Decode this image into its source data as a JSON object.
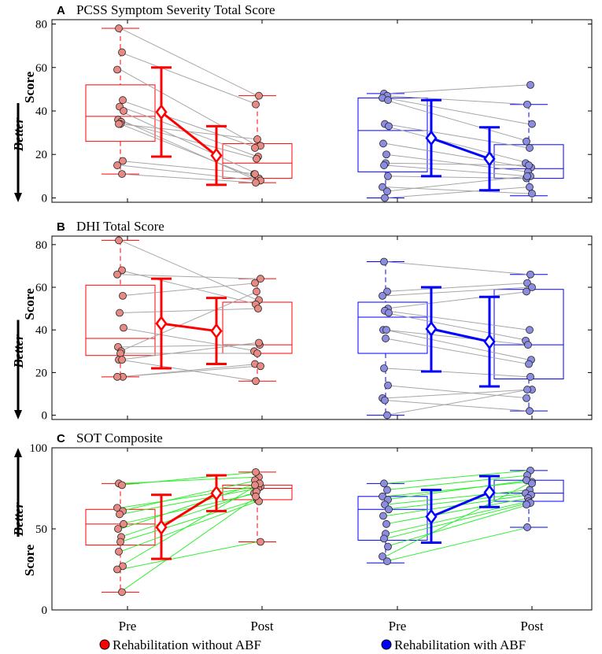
{
  "colors": {
    "without": "#ff0000",
    "with": "#0000ff",
    "pointFillWithout": "#e88a84",
    "pointFillWith": "#8c8ce0",
    "lineWorse": "#a6a6a6",
    "lineBetterSOT": "#33ee33"
  },
  "legend": [
    {
      "label": "Rehabilitation without ABF",
      "color": "#ff0000"
    },
    {
      "label": "Rehabilitation with ABF",
      "color": "#0000ff"
    }
  ],
  "chart_data": [
    {
      "letter": "A",
      "title": "PCSS Symptom Severity Total Score",
      "type": "boxplot+paired-scatter",
      "ylim": [
        -2,
        82
      ],
      "yticks": [
        "0",
        "20",
        "40",
        "60",
        "80"
      ],
      "ytick_values": [
        0,
        20,
        40,
        60,
        80
      ],
      "ylabel": "Score",
      "better_label": "Better",
      "better_direction": "down",
      "categories": [
        "Pre",
        "Post",
        "Pre",
        "Post"
      ],
      "groups": [
        {
          "name": "Rehabilitation without ABF",
          "pre_box": {
            "q1": 26,
            "median": 37.5,
            "q3": 52,
            "whisker_low": 11,
            "whisker_high": 78
          },
          "post_box": {
            "q1": 9,
            "median": 16,
            "q3": 25,
            "whisker_low": 7,
            "whisker_high": 47
          },
          "mean_pre": 39.5,
          "sd_pre": [
            19,
            60
          ],
          "mean_post": 19.5,
          "sd_post": [
            6,
            33
          ],
          "pairs": [
            [
              78,
              47
            ],
            [
              67,
              43
            ],
            [
              59,
              24
            ],
            [
              45,
              23
            ],
            [
              42,
              19
            ],
            [
              40,
              11
            ],
            [
              36,
              8
            ],
            [
              35,
              18
            ],
            [
              34,
              27
            ],
            [
              34,
              9
            ],
            [
              17,
              11
            ],
            [
              15,
              8
            ],
            [
              11,
              7
            ]
          ]
        },
        {
          "name": "Rehabilitation with ABF",
          "pre_box": {
            "q1": 12,
            "median": 31,
            "q3": 46,
            "whisker_low": 0,
            "whisker_high": 48
          },
          "post_box": {
            "q1": 9,
            "median": 13.5,
            "q3": 24.5,
            "whisker_low": 1,
            "whisker_high": 43
          },
          "mean_pre": 27.5,
          "sd_pre": [
            10,
            45
          ],
          "mean_post": 18,
          "sd_post": [
            3.5,
            32.5
          ],
          "pairs": [
            [
              48,
              52
            ],
            [
              47,
              43
            ],
            [
              46,
              34
            ],
            [
              45,
              26
            ],
            [
              34,
              23
            ],
            [
              33,
              16
            ],
            [
              25,
              14
            ],
            [
              20,
              12
            ],
            [
              16,
              15
            ],
            [
              15,
              10
            ],
            [
              10,
              9
            ],
            [
              5,
              2
            ],
            [
              3,
              10
            ],
            [
              0,
              5
            ]
          ]
        }
      ]
    },
    {
      "letter": "B",
      "title": "DHI Total Score",
      "type": "boxplot+paired-scatter",
      "ylim": [
        -2,
        84
      ],
      "yticks": [
        "0",
        "20",
        "40",
        "60",
        "80"
      ],
      "ytick_values": [
        0,
        20,
        40,
        60,
        80
      ],
      "ylabel": "Score",
      "better_label": "Better",
      "better_direction": "down",
      "categories": [
        "Pre",
        "Post",
        "Pre",
        "Post"
      ],
      "groups": [
        {
          "name": "Rehabilitation without ABF",
          "pre_box": {
            "q1": 28,
            "median": 36,
            "q3": 61,
            "whisker_low": 18,
            "whisker_high": 82
          },
          "post_box": {
            "q1": 29,
            "median": 33,
            "q3": 53,
            "whisker_low": 16,
            "whisker_high": 64
          },
          "mean_pre": 43,
          "sd_pre": [
            22,
            64
          ],
          "mean_post": 39.5,
          "sd_post": [
            24,
            55
          ],
          "pairs": [
            [
              82,
              54
            ],
            [
              68,
              52
            ],
            [
              66,
              64
            ],
            [
              56,
              62
            ],
            [
              48,
              50
            ],
            [
              41,
              30
            ],
            [
              32,
              33
            ],
            [
              30,
              58
            ],
            [
              29,
              29
            ],
            [
              26,
              34
            ],
            [
              18,
              24
            ],
            [
              18,
              23
            ],
            [
              26,
              16
            ]
          ]
        },
        {
          "name": "Rehabilitation with ABF",
          "pre_box": {
            "q1": 29,
            "median": 46,
            "q3": 53,
            "whisker_low": 0,
            "whisker_high": 72
          },
          "post_box": {
            "q1": 17,
            "median": 33,
            "q3": 59,
            "whisker_low": 2,
            "whisker_high": 66
          },
          "mean_pre": 40.5,
          "sd_pre": [
            20.5,
            60
          ],
          "mean_post": 34.5,
          "sd_post": [
            13.5,
            55.5
          ],
          "pairs": [
            [
              72,
              66
            ],
            [
              58,
              62
            ],
            [
              56,
              60
            ],
            [
              50,
              58
            ],
            [
              49,
              40
            ],
            [
              48,
              35
            ],
            [
              40,
              26
            ],
            [
              40,
              33
            ],
            [
              36,
              24
            ],
            [
              22,
              18
            ],
            [
              14,
              8
            ],
            [
              8,
              12
            ],
            [
              0,
              12
            ],
            [
              7,
              2
            ]
          ]
        }
      ]
    },
    {
      "letter": "C",
      "title": "SOT Composite",
      "type": "boxplot+paired-scatter",
      "ylim": [
        0,
        100
      ],
      "yticks": [
        "0",
        "50",
        "100"
      ],
      "ytick_values": [
        0,
        50,
        100
      ],
      "ylabel": "Score",
      "better_label": "Better",
      "better_direction": "up",
      "categories": [
        "Pre",
        "Post",
        "Pre",
        "Post"
      ],
      "groups": [
        {
          "name": "Rehabilitation without ABF",
          "pre_box": {
            "q1": 40,
            "median": 53,
            "q3": 62,
            "whisker_low": 11,
            "whisker_high": 78
          },
          "post_box": {
            "q1": 68,
            "median": 75,
            "q3": 77,
            "whisker_low": 42,
            "whisker_high": 85
          },
          "mean_pre": 51,
          "sd_pre": [
            31.5,
            71
          ],
          "mean_post": 72,
          "sd_post": [
            61,
            83
          ],
          "pairs": [
            [
              78,
              82
            ],
            [
              77,
              85
            ],
            [
              63,
              76
            ],
            [
              61,
              80
            ],
            [
              59,
              75
            ],
            [
              53,
              72
            ],
            [
              50,
              78
            ],
            [
              45,
              73
            ],
            [
              42,
              68
            ],
            [
              36,
              67
            ],
            [
              27,
              77
            ],
            [
              25,
              42
            ],
            [
              11,
              70
            ]
          ]
        },
        {
          "name": "Rehabilitation with ABF",
          "pre_box": {
            "q1": 43,
            "median": 62,
            "q3": 70,
            "whisker_low": 29,
            "whisker_high": 78
          },
          "post_box": {
            "q1": 67,
            "median": 72,
            "q3": 80,
            "whisker_low": 51,
            "whisker_high": 86
          },
          "mean_pre": 57.5,
          "sd_pre": [
            41.5,
            74
          ],
          "mean_post": 72.5,
          "sd_post": [
            63.5,
            82.5
          ],
          "pairs": [
            [
              78,
              86
            ],
            [
              74,
              83
            ],
            [
              70,
              79
            ],
            [
              68,
              80
            ],
            [
              65,
              74
            ],
            [
              62,
              72
            ],
            [
              58,
              71
            ],
            [
              53,
              69
            ],
            [
              47,
              67
            ],
            [
              44,
              66
            ],
            [
              39,
              65
            ],
            [
              33,
              78
            ],
            [
              30,
              51
            ]
          ]
        }
      ]
    }
  ]
}
